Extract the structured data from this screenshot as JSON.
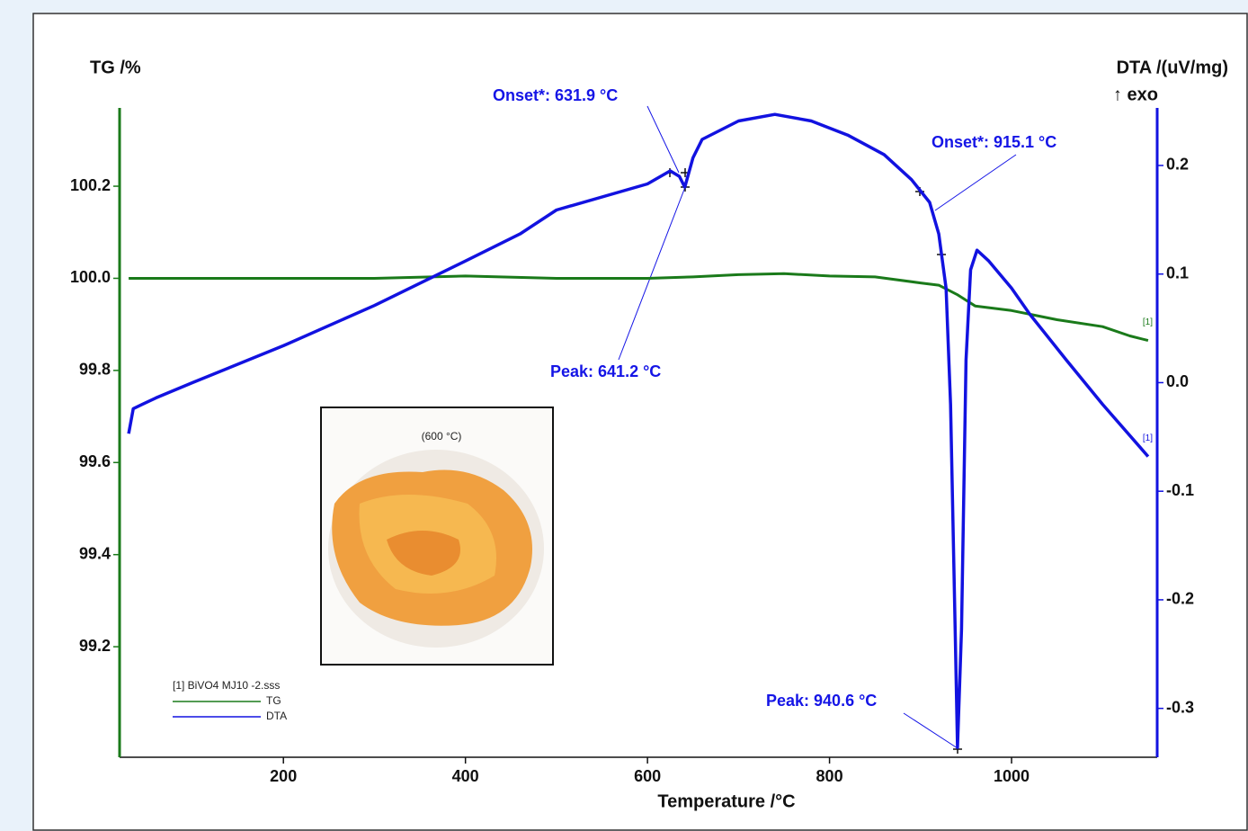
{
  "chart_data": {
    "type": "line",
    "xlabel": "Temperature /°C",
    "ylabel": "TG /%",
    "y2label": "DTA /(uV/mg)",
    "y2note": "↑ exo",
    "xlim": [
      20,
      1160
    ],
    "xticks": [
      200,
      400,
      600,
      800,
      1000
    ],
    "ylim": [
      98.96,
      100.37
    ],
    "yticks": [
      99.2,
      99.4,
      99.6,
      99.8,
      {
        "value": 100,
        "label": "100.0"
      },
      100.2
    ],
    "y2lim": [
      -0.345,
      0.253
    ],
    "y2ticks": [
      -0.3,
      -0.2,
      -0.1,
      {
        "value": 0,
        "label": "0.0"
      },
      0.1,
      0.2
    ],
    "legend_title": "[1] BiVO4 MJ10 -2.sss",
    "curve_label": "[1]",
    "inset_label": "(600 °C)",
    "annotations": [
      "Onset*: 631.9 °C",
      "Peak: 641.2 °C",
      "Onset*: 915.1 °C",
      "Peak: 940.6 °C"
    ],
    "series": [
      {
        "name": "TG",
        "color": "#1a7a1a",
        "axis": "y",
        "x": [
          30,
          100,
          200,
          300,
          400,
          500,
          600,
          650,
          700,
          750,
          800,
          850,
          900,
          920,
          940,
          960,
          1000,
          1050,
          1100,
          1130,
          1150
        ],
        "values": [
          100.0,
          100.0,
          100.0,
          100.0,
          100.005,
          100.0,
          100.0,
          100.003,
          100.008,
          100.01,
          100.005,
          100.003,
          99.99,
          99.985,
          99.965,
          99.94,
          99.93,
          99.91,
          99.895,
          99.875,
          99.865
        ]
      },
      {
        "name": "DTA",
        "color": "#1212e0",
        "axis": "y2",
        "x": [
          30,
          35,
          45,
          60,
          100,
          200,
          300,
          400,
          460,
          500,
          600,
          625,
          635,
          641,
          650,
          660,
          700,
          740,
          780,
          820,
          860,
          890,
          910,
          920,
          928,
          933,
          938,
          940.6,
          945,
          950,
          955,
          962,
          975,
          1000,
          1020,
          1060,
          1100,
          1150
        ],
        "values": [
          -0.047,
          -0.024,
          -0.02,
          -0.014,
          0.0,
          0.034,
          0.071,
          0.112,
          0.137,
          0.159,
          0.183,
          0.195,
          0.19,
          0.18,
          0.207,
          0.224,
          0.241,
          0.247,
          0.241,
          0.228,
          0.21,
          0.187,
          0.166,
          0.137,
          0.087,
          -0.02,
          -0.227,
          -0.336,
          -0.227,
          0.021,
          0.104,
          0.122,
          0.112,
          0.087,
          0.063,
          0.021,
          -0.02,
          -0.068
        ]
      }
    ]
  }
}
